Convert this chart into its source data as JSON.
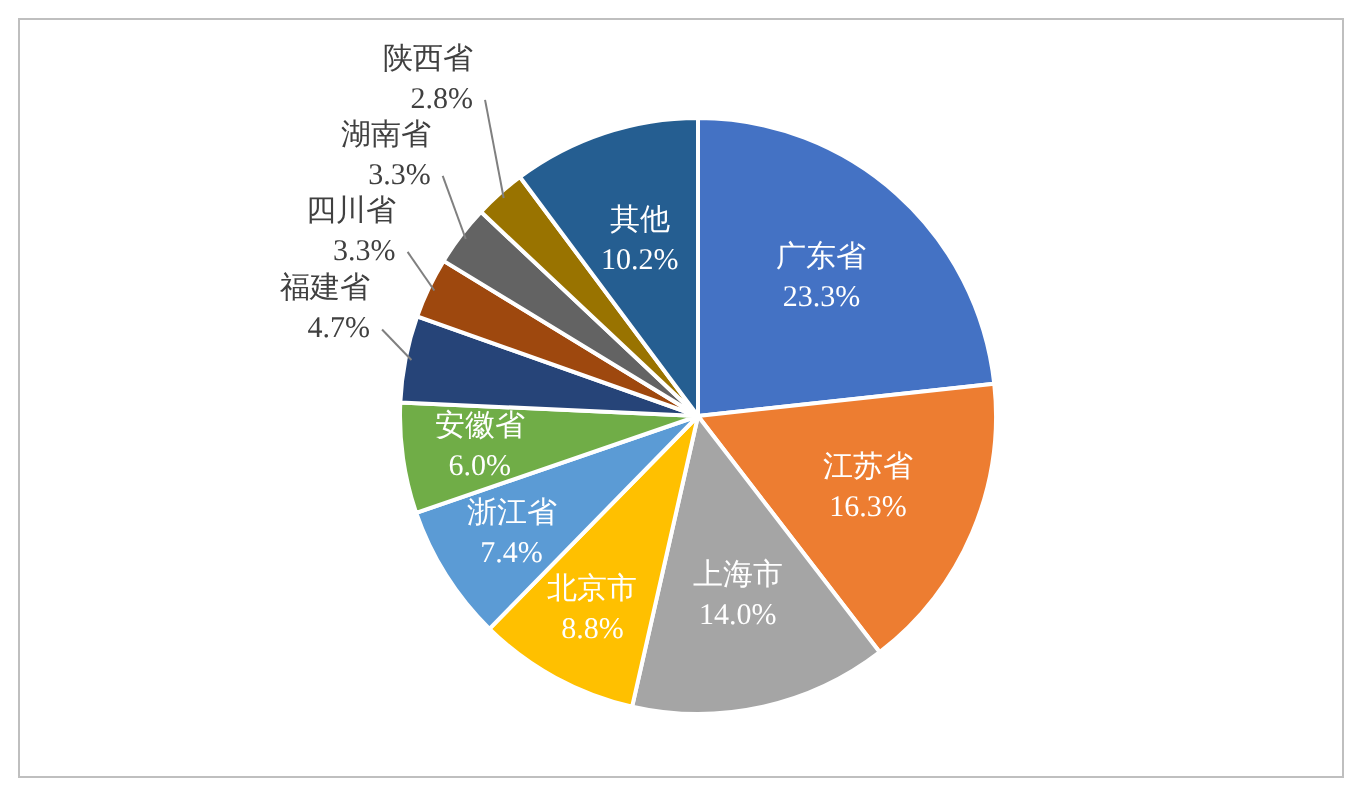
{
  "chart_data": {
    "type": "pie",
    "categories": [
      "广东省",
      "江苏省",
      "上海市",
      "北京市",
      "浙江省",
      "安徽省",
      "福建省",
      "四川省",
      "湖南省",
      "陕西省",
      "其他"
    ],
    "values": [
      23.3,
      16.3,
      14.0,
      8.8,
      7.4,
      6.0,
      4.7,
      3.3,
      3.3,
      2.8,
      10.2
    ],
    "value_labels": [
      "23.3%",
      "16.3%",
      "14.0%",
      "8.8%",
      "7.4%",
      "6.0%",
      "4.7%",
      "3.3%",
      "3.3%",
      "2.8%",
      "10.2%"
    ],
    "colors": [
      "#4472c4",
      "#ed7d31",
      "#a5a5a5",
      "#ffc000",
      "#5b9bd5",
      "#70ad47",
      "#264478",
      "#9e480e",
      "#636363",
      "#997300",
      "#255e91"
    ],
    "legend": false
  }
}
